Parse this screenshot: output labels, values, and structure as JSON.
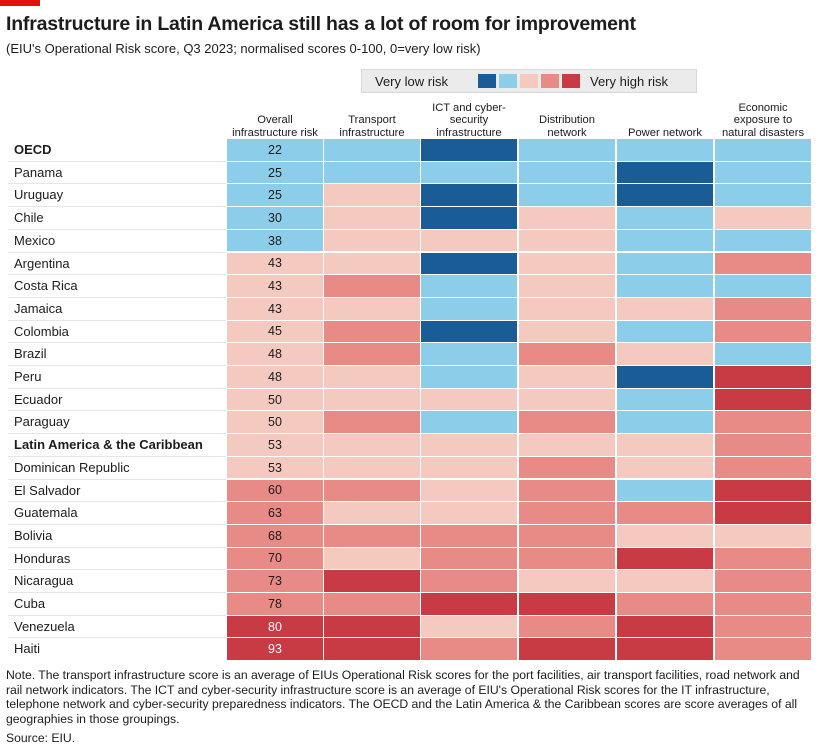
{
  "chart_data": {
    "type": "heatmap",
    "title": "Infrastructure in Latin America still has a lot of room for improvement",
    "subtitle": "(EIU's Operational Risk score, Q3 2023; normalised scores 0-100, 0=very low risk)",
    "legend": {
      "low_label": "Very low risk",
      "high_label": "Very high risk",
      "colors": [
        "#1a5d96",
        "#8ccde9",
        "#f4c9bf",
        "#e88a86",
        "#c83b45"
      ]
    },
    "columns": [
      "Overall infrastructure risk",
      "Transport infrastructure",
      "ICT and cyber-security infrastructure",
      "Distribution network",
      "Power network",
      "Economic exposure to natural disasters"
    ],
    "rows": [
      {
        "name": "OECD",
        "bold": true,
        "score": 22,
        "levels": [
          2,
          2,
          1,
          2,
          2,
          2
        ]
      },
      {
        "name": "Panama",
        "bold": false,
        "score": 25,
        "levels": [
          2,
          2,
          2,
          2,
          1,
          2
        ]
      },
      {
        "name": "Uruguay",
        "bold": false,
        "score": 25,
        "levels": [
          2,
          3,
          1,
          2,
          1,
          2
        ]
      },
      {
        "name": "Chile",
        "bold": false,
        "score": 30,
        "levels": [
          2,
          3,
          1,
          3,
          2,
          3
        ]
      },
      {
        "name": "Mexico",
        "bold": false,
        "score": 38,
        "levels": [
          2,
          3,
          3,
          3,
          2,
          2
        ]
      },
      {
        "name": "Argentina",
        "bold": false,
        "score": 43,
        "levels": [
          3,
          3,
          1,
          3,
          2,
          4
        ]
      },
      {
        "name": "Costa Rica",
        "bold": false,
        "score": 43,
        "levels": [
          3,
          4,
          2,
          3,
          2,
          2
        ]
      },
      {
        "name": "Jamaica",
        "bold": false,
        "score": 43,
        "levels": [
          3,
          3,
          2,
          3,
          3,
          4
        ]
      },
      {
        "name": "Colombia",
        "bold": false,
        "score": 45,
        "levels": [
          3,
          4,
          1,
          3,
          2,
          4
        ]
      },
      {
        "name": "Brazil",
        "bold": false,
        "score": 48,
        "levels": [
          3,
          4,
          2,
          4,
          3,
          2
        ]
      },
      {
        "name": "Peru",
        "bold": false,
        "score": 48,
        "levels": [
          3,
          3,
          2,
          3,
          1,
          5
        ]
      },
      {
        "name": "Ecuador",
        "bold": false,
        "score": 50,
        "levels": [
          3,
          3,
          3,
          3,
          2,
          5
        ]
      },
      {
        "name": "Paraguay",
        "bold": false,
        "score": 50,
        "levels": [
          3,
          4,
          2,
          4,
          2,
          4
        ]
      },
      {
        "name": "Latin America & the Caribbean",
        "bold": true,
        "score": 53,
        "levels": [
          3,
          3,
          3,
          3,
          3,
          4
        ]
      },
      {
        "name": "Dominican Republic",
        "bold": false,
        "score": 53,
        "levels": [
          3,
          3,
          3,
          4,
          3,
          4
        ]
      },
      {
        "name": "El Salvador",
        "bold": false,
        "score": 60,
        "levels": [
          4,
          4,
          3,
          4,
          2,
          5
        ]
      },
      {
        "name": "Guatemala",
        "bold": false,
        "score": 63,
        "levels": [
          4,
          3,
          3,
          4,
          4,
          5
        ]
      },
      {
        "name": "Bolivia",
        "bold": false,
        "score": 68,
        "levels": [
          4,
          4,
          4,
          4,
          3,
          3
        ]
      },
      {
        "name": "Honduras",
        "bold": false,
        "score": 70,
        "levels": [
          4,
          3,
          4,
          4,
          5,
          4
        ]
      },
      {
        "name": "Nicaragua",
        "bold": false,
        "score": 73,
        "levels": [
          4,
          5,
          4,
          3,
          3,
          4
        ]
      },
      {
        "name": "Cuba",
        "bold": false,
        "score": 78,
        "levels": [
          4,
          4,
          5,
          5,
          4,
          4
        ]
      },
      {
        "name": "Venezuela",
        "bold": false,
        "score": 80,
        "levels": [
          5,
          5,
          3,
          4,
          5,
          4
        ]
      },
      {
        "name": "Haiti",
        "bold": false,
        "score": 93,
        "levels": [
          5,
          5,
          4,
          5,
          5,
          4
        ]
      }
    ]
  },
  "footer": {
    "note": "Note. The transport infrastructure score is an average of EIUs Operational Risk scores for the port facilities, air transport facilities, road network and rail network indicators. The ICT and cyber-security infrastructure score is an average of EIU's Operational Risk scores for the IT infrastructure, telephone network and cyber-security preparedness indicators. The OECD and the Latin America & the Caribbean scores are score averages of all geographies in those groupings.",
    "source": "Source: EIU."
  }
}
